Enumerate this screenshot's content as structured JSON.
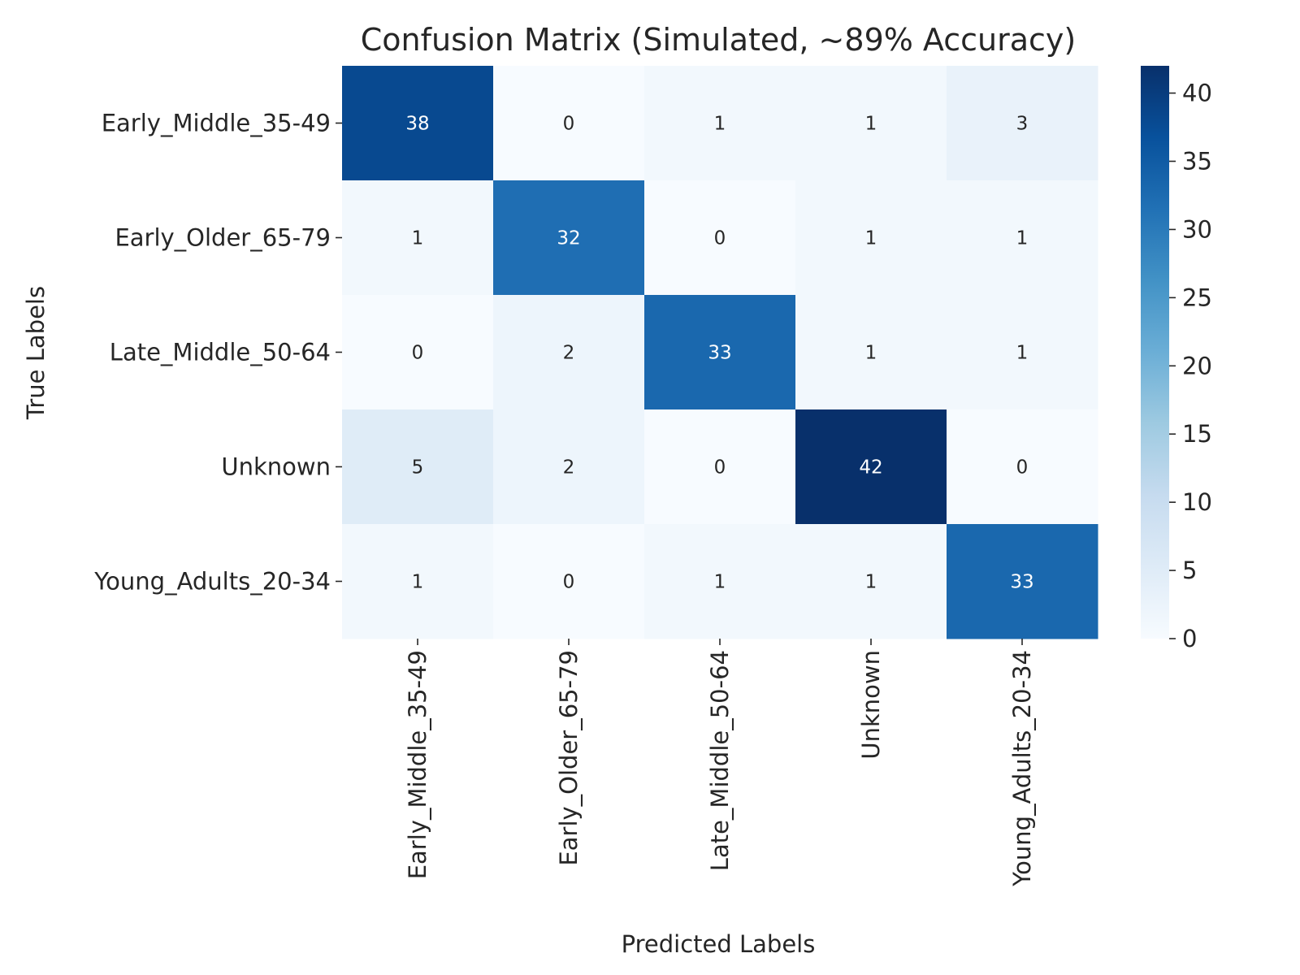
{
  "chart_data": {
    "type": "heatmap",
    "title": "Confusion Matrix (Simulated, ~89% Accuracy)",
    "xlabel": "Predicted Labels",
    "ylabel": "True Labels",
    "x_categories": [
      "Early_Middle_35-49",
      "Early_Older_65-79",
      "Late_Middle_50-64",
      "Unknown",
      "Young_Adults_20-34"
    ],
    "y_categories": [
      "Early_Middle_35-49",
      "Early_Older_65-79",
      "Late_Middle_50-64",
      "Unknown",
      "Young_Adults_20-34"
    ],
    "values": [
      [
        38,
        0,
        1,
        1,
        3
      ],
      [
        1,
        32,
        0,
        1,
        1
      ],
      [
        0,
        2,
        33,
        1,
        1
      ],
      [
        5,
        2,
        0,
        42,
        0
      ],
      [
        1,
        0,
        1,
        1,
        33
      ]
    ],
    "colormap": "Blues",
    "colorbar": {
      "min": 0,
      "max": 42,
      "ticks": [
        0,
        5,
        10,
        15,
        20,
        25,
        30,
        35,
        40
      ]
    }
  }
}
